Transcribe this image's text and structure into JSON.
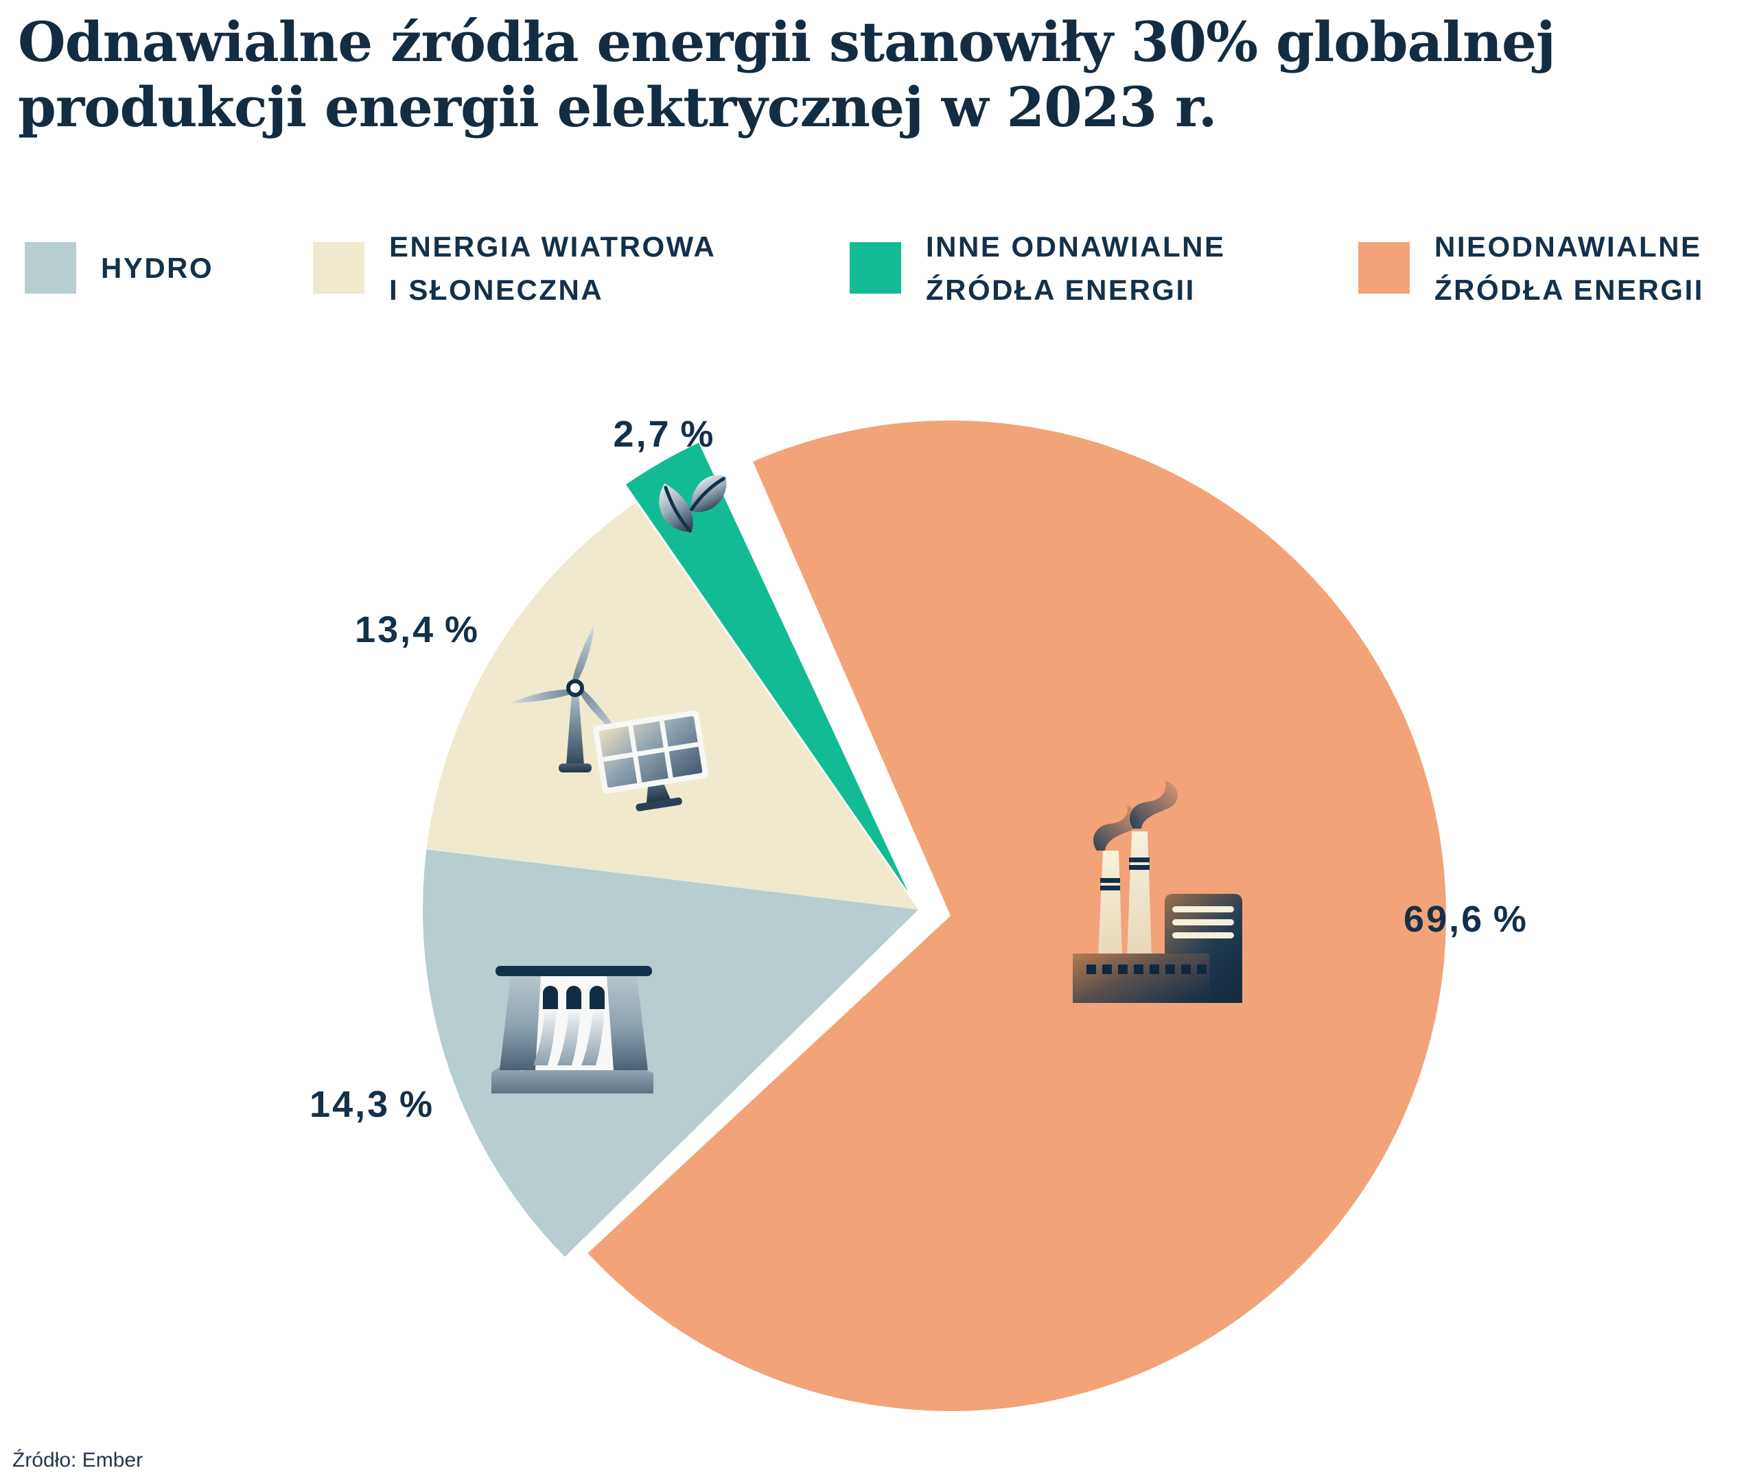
{
  "title": {
    "line1": "Odnawialne źródła energii stanowiły 30% globalnej",
    "line2": "produkcji energii elektrycznej w 2023 r."
  },
  "source": {
    "text": "Źródło: Ember"
  },
  "colors": {
    "background": "#ffffff",
    "title_text": "#132c42",
    "label_text": "#14304a",
    "hydro": "#b7cdd0",
    "wind_solar": "#f0e9ce",
    "other_renewables": "#13bb94",
    "nonrenewable": "#f2a378"
  },
  "legend": [
    {
      "line1": "HYDRO",
      "line2": "",
      "color": "#b7cdd0"
    },
    {
      "line1": "ENERGIA WIATROWA",
      "line2": "I SŁONECZNA",
      "color": "#f0e9ce"
    },
    {
      "line1": "INNE ODNAWIALNE",
      "line2": "ŹRÓDŁA ENERGII",
      "color": "#13bb94"
    },
    {
      "line1": "NIEODNAWIALNE",
      "line2": "ŹRÓDŁA ENERGII",
      "color": "#f2a378"
    }
  ],
  "chart_data": {
    "type": "pie",
    "title": "Odnawialne źródła energii stanowiły 30% globalnej produkcji energii elektrycznej w 2023 r.",
    "unit": "percent",
    "legend_position": "top",
    "total": 100,
    "slices": [
      {
        "id": "hydro",
        "label": "HYDRO",
        "value": 14.3,
        "value_label": "14,3 %",
        "color": "#b7cdd0",
        "icon": "dam-icon"
      },
      {
        "id": "wind_solar",
        "label": "ENERGIA WIATROWA I SŁONECZNA",
        "value": 13.4,
        "value_label": "13,4 %",
        "color": "#f0e9ce",
        "icon": "wind-turbine-solar-panel-icon"
      },
      {
        "id": "other_renewables",
        "label": "INNE ODNAWIALNE ŹRÓDŁA ENERGII",
        "value": 2.7,
        "value_label": "2,7 %",
        "color": "#13bb94",
        "icon": "leaf-icon"
      },
      {
        "id": "nonrenewable",
        "label": "NIEODNAWIALNE ŹRÓDŁA ENERGII",
        "value": 69.6,
        "value_label": "69,6 %",
        "color": "#f2a378",
        "icon": "factory-icon"
      }
    ]
  }
}
